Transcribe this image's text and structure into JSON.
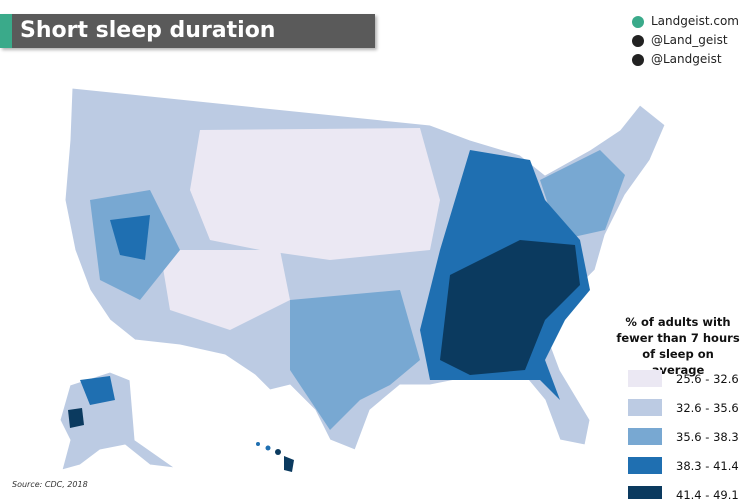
{
  "header": {
    "title": "Short sleep duration"
  },
  "social": [
    "Landgeist.com",
    "@Land_geist",
    "@Landgeist"
  ],
  "legend": {
    "title": "% of adults with fewer than 7 hours of sleep on average",
    "items": [
      {
        "label": "25.6 - 32.6",
        "color": "#ebe8f3"
      },
      {
        "label": "32.6 - 35.6",
        "color": "#bccbe3"
      },
      {
        "label": "35.6 - 38.3",
        "color": "#78a8d2"
      },
      {
        "label": "38.3 - 41.4",
        "color": "#1f6fb1"
      },
      {
        "label": "41.4 - 49.1",
        "color": "#0b3a5f"
      }
    ]
  },
  "source": "Source: CDC, 2018"
}
